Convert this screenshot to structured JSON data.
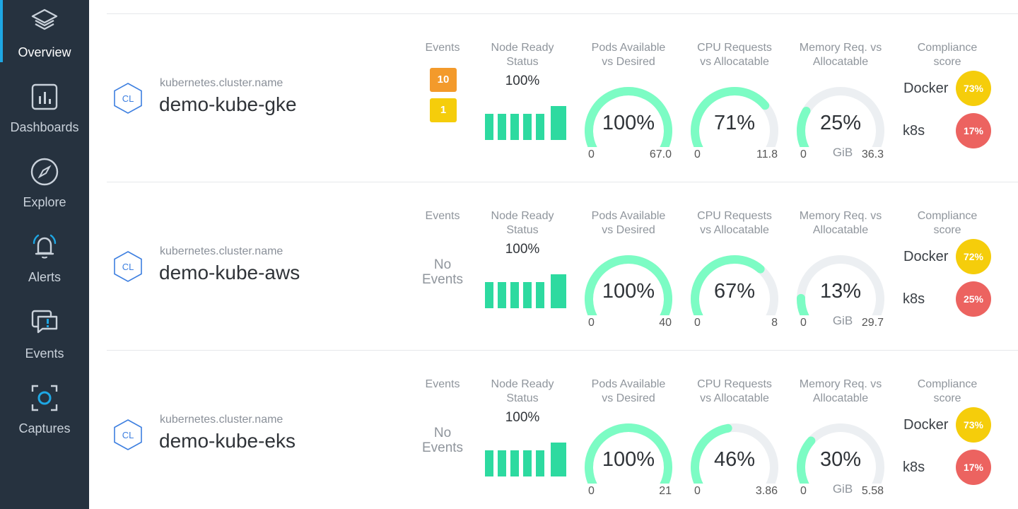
{
  "sidebar": {
    "items": [
      {
        "label": "Overview",
        "icon": "layers-icon",
        "active": true
      },
      {
        "label": "Dashboards",
        "icon": "bar-chart-icon"
      },
      {
        "label": "Explore",
        "icon": "compass-icon"
      },
      {
        "label": "Alerts",
        "icon": "bell-icon"
      },
      {
        "label": "Events",
        "icon": "chat-alert-icon"
      },
      {
        "label": "Captures",
        "icon": "capture-icon"
      }
    ]
  },
  "headers": {
    "events": "Events",
    "node_1": "Node Ready",
    "node_2": "Status",
    "pods_1": "Pods Available",
    "pods_2": "vs Desired",
    "cpu_1": "CPU Requests",
    "cpu_2": "vs Allocatable",
    "mem_1": "Memory Req. vs",
    "mem_2": "Allocatable",
    "comp_1": "Compliance",
    "comp_2": "score"
  },
  "labels": {
    "cluster_field": "kubernetes.cluster.name",
    "cluster_icon": "CL",
    "no_events_1": "No",
    "no_events_2": "Events",
    "docker": "Docker",
    "k8s": "k8s",
    "gib": "GiB",
    "zero": "0"
  },
  "colors": {
    "sidebar_bg": "#26323f",
    "accent": "#1ea7e4",
    "gauge_fill": "#7cfcc4",
    "gauge_track": "#eceff2",
    "node_bar": "#2ddaa0",
    "badge_orange": "#f39a2b",
    "badge_yellow": "#f5cd0b",
    "score_yellow": "#f5cd0b",
    "score_red": "#ec6360"
  },
  "clusters": [
    {
      "name": "demo-kube-gke",
      "events": [
        {
          "count": "10",
          "color": "orange"
        },
        {
          "count": "1",
          "color": "yellow"
        }
      ],
      "node_ready": "100%",
      "pods": {
        "value": "100%",
        "fraction": 1.0,
        "max": "67.0"
      },
      "cpu": {
        "value": "71%",
        "fraction": 0.71,
        "max": "11.8"
      },
      "memory": {
        "value": "25%",
        "fraction": 0.25,
        "max": "36.3"
      },
      "compliance": {
        "docker": "73%",
        "docker_color": "yellow",
        "k8s": "17%",
        "k8s_color": "red"
      }
    },
    {
      "name": "demo-kube-aws",
      "events": [],
      "node_ready": "100%",
      "pods": {
        "value": "100%",
        "fraction": 1.0,
        "max": "40"
      },
      "cpu": {
        "value": "67%",
        "fraction": 0.67,
        "max": "8"
      },
      "memory": {
        "value": "13%",
        "fraction": 0.13,
        "max": "29.7"
      },
      "compliance": {
        "docker": "72%",
        "docker_color": "yellow",
        "k8s": "25%",
        "k8s_color": "red"
      }
    },
    {
      "name": "demo-kube-eks",
      "events": [],
      "node_ready": "100%",
      "pods": {
        "value": "100%",
        "fraction": 1.0,
        "max": "21"
      },
      "cpu": {
        "value": "46%",
        "fraction": 0.46,
        "max": "3.86"
      },
      "memory": {
        "value": "30%",
        "fraction": 0.3,
        "max": "5.58"
      },
      "compliance": {
        "docker": "73%",
        "docker_color": "yellow",
        "k8s": "17%",
        "k8s_color": "red"
      }
    }
  ]
}
